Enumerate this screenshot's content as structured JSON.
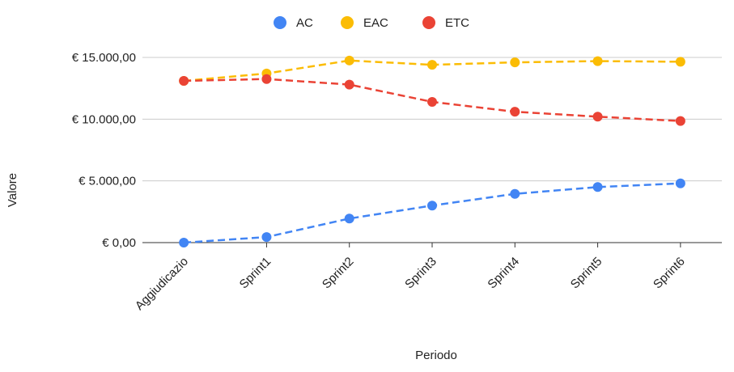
{
  "chart_data": {
    "type": "line",
    "title": "",
    "xlabel": "Periodo",
    "ylabel": "Valore",
    "categories": [
      "Aggiudicazio",
      "Sprint1",
      "Sprint2",
      "Sprint3",
      "Sprint4",
      "Sprint5",
      "Sprint6"
    ],
    "ylim": [
      0,
      15000
    ],
    "yticks": [
      0,
      5000,
      10000,
      15000
    ],
    "ytick_labels": [
      "€ 0,00",
      "€ 5.000,00",
      "€ 10.000,00",
      "€ 15.000,00"
    ],
    "grid": true,
    "legend_position": "top",
    "series": [
      {
        "name": "AC",
        "color": "#4285f4",
        "values": [
          0,
          450,
          1950,
          3000,
          3950,
          4500,
          4800
        ]
      },
      {
        "name": "EAC",
        "color": "#fbbc04",
        "values": [
          13100,
          13700,
          14750,
          14400,
          14600,
          14700,
          14650
        ]
      },
      {
        "name": "ETC",
        "color": "#ea4335",
        "values": [
          13100,
          13250,
          12800,
          11400,
          10600,
          10200,
          9850
        ]
      }
    ]
  }
}
